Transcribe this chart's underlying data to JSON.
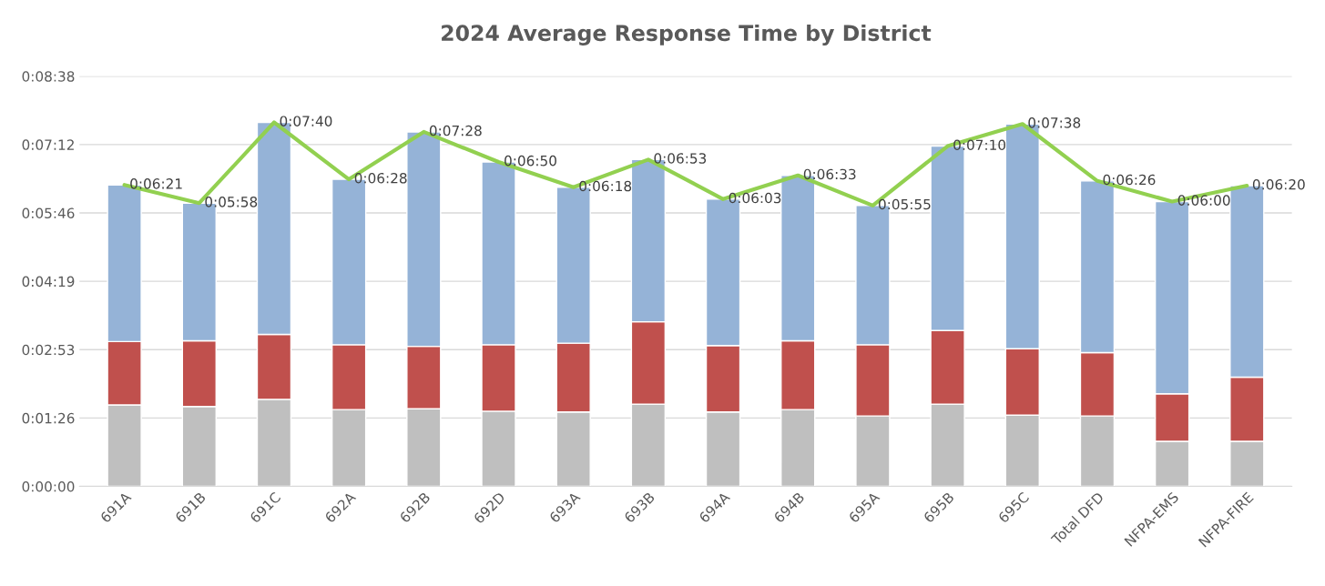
{
  "chart_data": {
    "type": "bar",
    "title": "2024 Average Response Time by District",
    "stacked": true,
    "grid": "y",
    "categories": [
      "691A",
      "691B",
      "691C",
      "692A",
      "692B",
      "692D",
      "693A",
      "693B",
      "694A",
      "694B",
      "695A",
      "695B",
      "695C",
      "Total DFD",
      "NFPA-EMS",
      "NFPA-FIRE"
    ],
    "ylim": [
      0,
      518.4
    ],
    "yticks": [
      {
        "value": 0,
        "label": "0:00:00"
      },
      {
        "value": 86.4,
        "label": "0:01:26"
      },
      {
        "value": 172.8,
        "label": "0:02:53"
      },
      {
        "value": 259.2,
        "label": "0:04:19"
      },
      {
        "value": 345.6,
        "label": "0:05:46"
      },
      {
        "value": 432,
        "label": "0:07:12"
      },
      {
        "value": 518.4,
        "label": "0:08:38"
      }
    ],
    "series": [
      {
        "color": "#bfbfbf",
        "values": [
          103,
          101,
          110,
          97,
          98,
          95,
          94,
          104,
          94,
          97,
          89,
          104,
          90,
          89,
          57,
          57
        ]
      },
      {
        "color": "#c0504d",
        "values": [
          80,
          83,
          82,
          82,
          79,
          84,
          87,
          104,
          84,
          87,
          90,
          93,
          84,
          80,
          60,
          81
        ]
      },
      {
        "color": "#95b3d7",
        "values": [
          198,
          174,
          268,
          209,
          271,
          231,
          197,
          205,
          185,
          209,
          176,
          233,
          284,
          217,
          243,
          242
        ]
      },
      {
        "type": "line",
        "color": "#92d050",
        "marker": "none",
        "line_style": "solid",
        "values": [
          381,
          358,
          460,
          388,
          448,
          410,
          378,
          413,
          363,
          393,
          355,
          430,
          458,
          386,
          360,
          380
        ],
        "value_labels": [
          "0:06:21",
          "0:05:58",
          "0:07:40",
          "0:06:28",
          "0:07:28",
          "0:06:50",
          "0:06:18",
          "0:06:53",
          "0:06:03",
          "0:06:33",
          "0:05:55",
          "0:07:10",
          "0:07:38",
          "0:06:26",
          "0:06:00",
          "0:06:20"
        ]
      }
    ]
  }
}
